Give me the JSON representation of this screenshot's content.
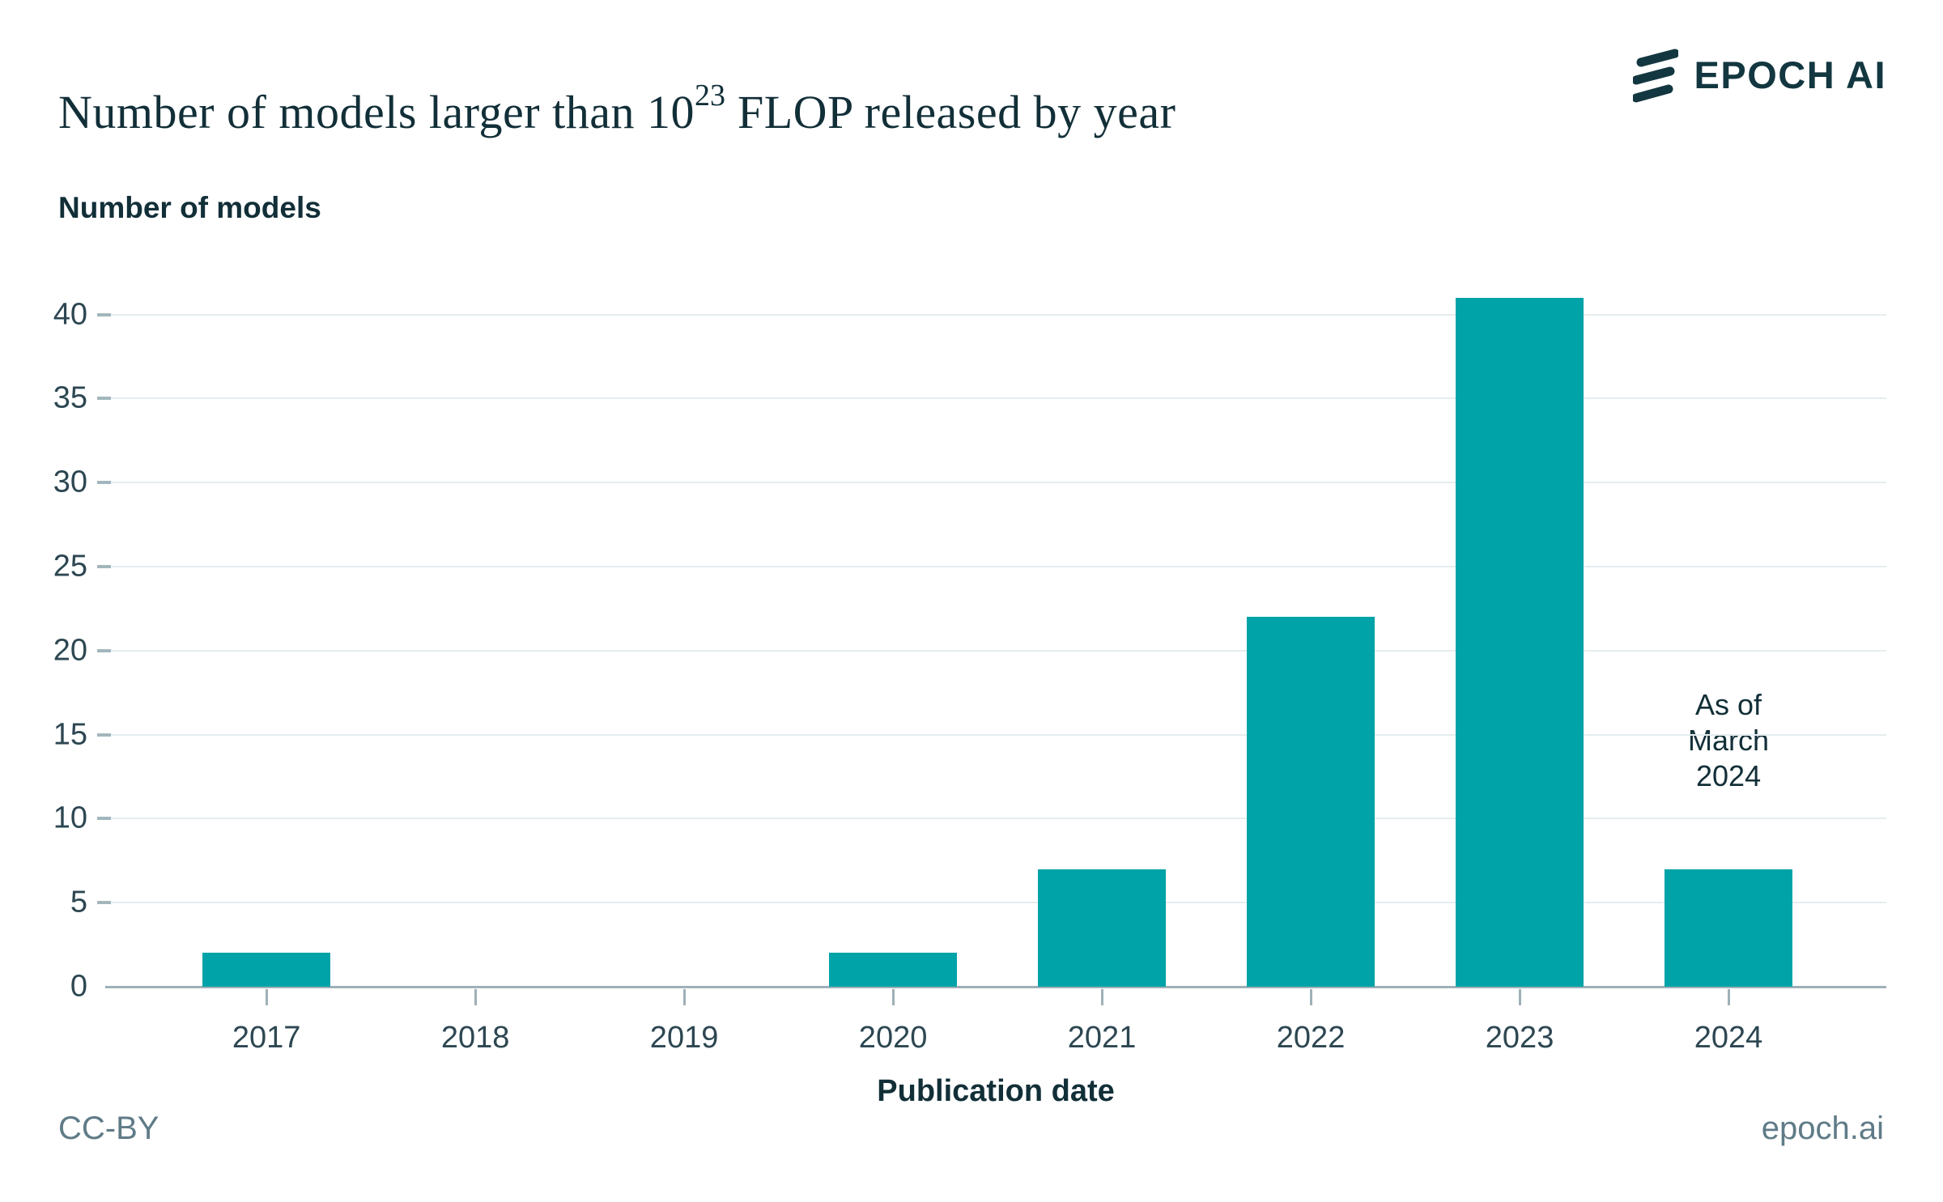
{
  "header": {
    "title": {
      "prefix": "Number of models larger than 10",
      "superscript": "23",
      "suffix": " FLOP released by year"
    },
    "logo": {
      "text": "EPOCH AI"
    }
  },
  "chart_data": {
    "type": "bar",
    "title": "Number of models larger than 10^23 FLOP released by year",
    "ylabel": "Number of models",
    "xlabel": "Publication date",
    "categories": [
      "2017",
      "2018",
      "2019",
      "2020",
      "2021",
      "2022",
      "2023",
      "2024"
    ],
    "values": [
      2,
      0,
      0,
      2,
      7,
      22,
      41,
      7
    ],
    "yticks": [
      0,
      5,
      10,
      15,
      20,
      25,
      30,
      35,
      40
    ],
    "ylim": [
      0,
      42
    ],
    "grid": true,
    "legend_position": "none",
    "bar_color": "#00A3A8",
    "annotation": {
      "lines": [
        "As of",
        "March",
        "2024"
      ],
      "category": "2024"
    }
  },
  "footer": {
    "license": "CC-BY",
    "website": "epoch.ai"
  },
  "colors": {
    "accent_teal": "#00A3A8",
    "text_dark": "#122F38",
    "axis_label": "#2D4752",
    "gridline": "#E4EDEF",
    "axis_line": "#9FB0B7",
    "footer_text": "#5F7B87",
    "logo_dark": "#133740"
  }
}
